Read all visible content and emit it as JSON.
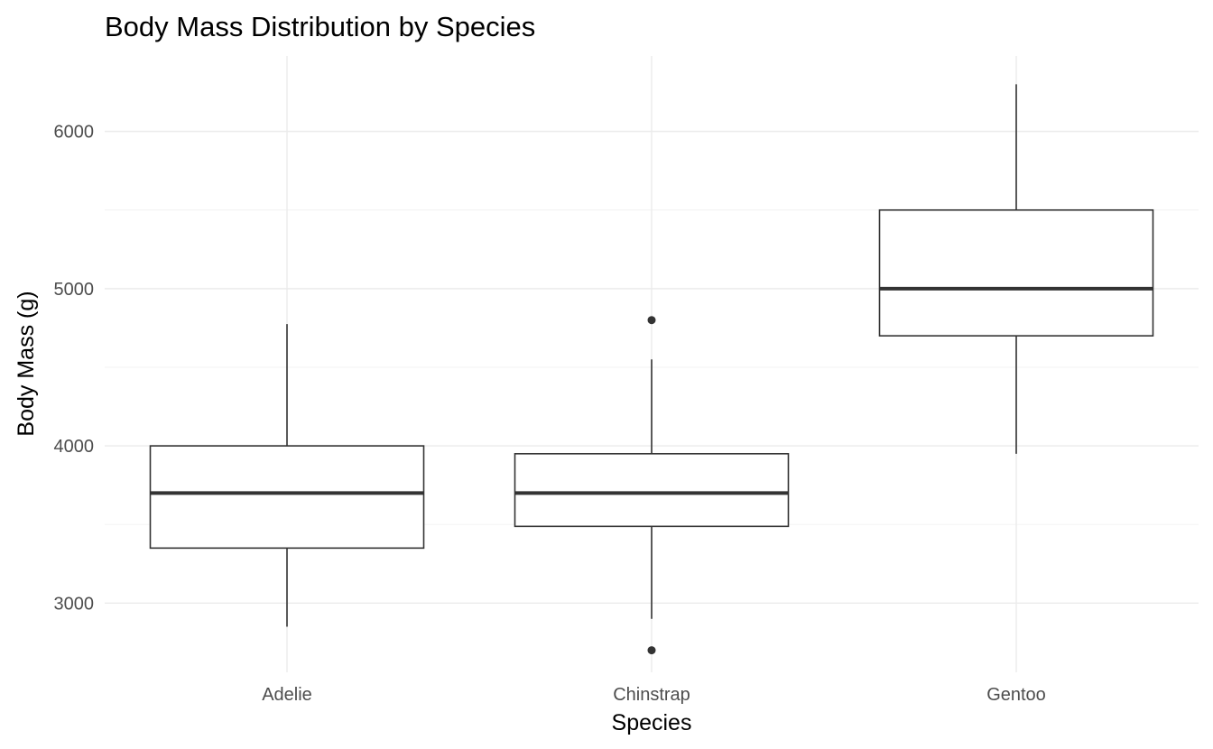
{
  "chart_data": {
    "type": "box",
    "title": "Body Mass Distribution by Species",
    "xlabel": "Species",
    "ylabel": "Body Mass (g)",
    "ylim": [
      2560,
      6480
    ],
    "yticks": [
      3000,
      4000,
      5000,
      6000
    ],
    "ytick_labels": [
      "3000",
      "4000",
      "5000",
      "6000"
    ],
    "grid": true,
    "legend": "none",
    "colors": {
      "box_stroke": "#333333",
      "box_fill": "#ffffff",
      "grid": "#ebebeb"
    },
    "categories": [
      "Adelie",
      "Chinstrap",
      "Gentoo"
    ],
    "boxes": [
      {
        "category": "Adelie",
        "whisker_low": 2850,
        "q1": 3350,
        "median": 3700,
        "q3": 4000,
        "whisker_high": 4775,
        "outliers": []
      },
      {
        "category": "Chinstrap",
        "whisker_low": 2900,
        "q1": 3488,
        "median": 3700,
        "q3": 3950,
        "whisker_high": 4550,
        "outliers": [
          2700,
          4800
        ]
      },
      {
        "category": "Gentoo",
        "whisker_low": 3950,
        "q1": 4700,
        "median": 5000,
        "q3": 5500,
        "whisker_high": 6300,
        "outliers": []
      }
    ]
  }
}
